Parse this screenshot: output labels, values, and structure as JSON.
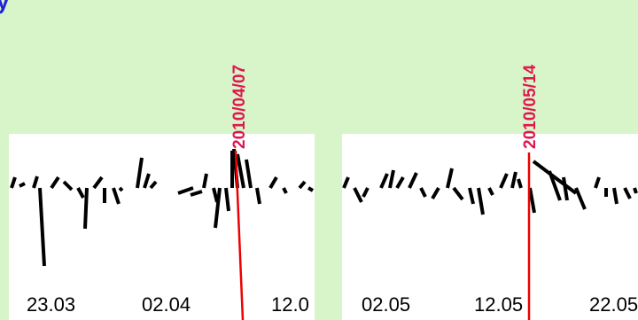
{
  "title_fragment": "y",
  "colors": {
    "background": "#d7f5c8",
    "panel": "#ffffff",
    "marker_line": "#ee0000",
    "marker_label": "#e0174f",
    "title": "#1f22d8",
    "stick": "#000000"
  },
  "chart_data": [
    {
      "type": "stick-plot",
      "panel": "left",
      "xlabel": "",
      "ylabel": "",
      "x_ticks": [
        "23.03",
        "02.04",
        "12.0"
      ],
      "marker": {
        "label": "2010/04/07"
      }
    },
    {
      "type": "stick-plot",
      "panel": "right",
      "xlabel": "",
      "ylabel": "",
      "x_ticks": [
        "02.05",
        "12.05",
        "22.05"
      ],
      "marker": {
        "label": "2010/05/14"
      }
    }
  ]
}
